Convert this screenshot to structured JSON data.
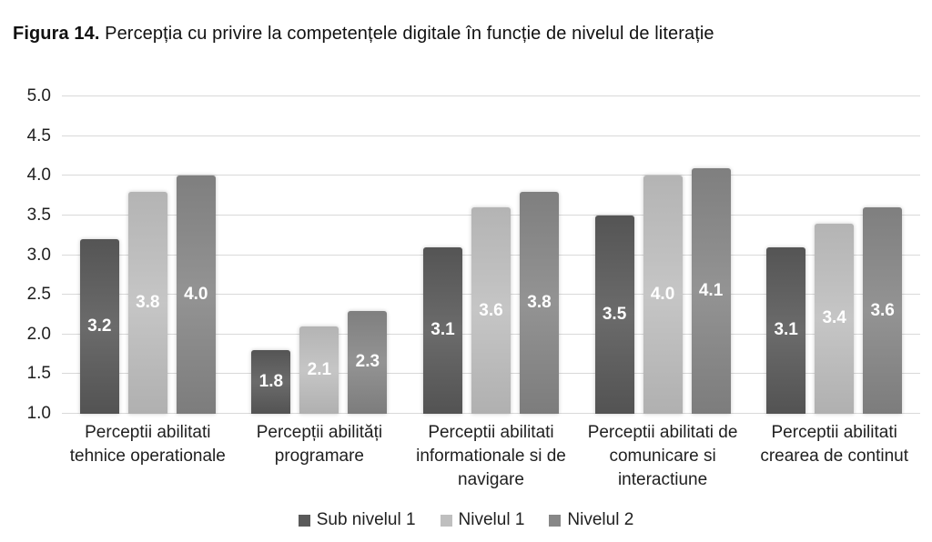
{
  "title": {
    "prefix": "Figura 14.",
    "text": " Percepția cu privire la competențele digitale în funcție de nivelul de literație"
  },
  "chart_data": {
    "type": "bar",
    "title": "Figura 14. Percepția cu privire la competențele digitale în funcție de nivelul de literație",
    "categories": [
      "Perceptii abilitati tehnice operationale",
      "Percepții abilități programare",
      "Perceptii abilitati informationale si de navigare",
      "Perceptii abilitati de comunicare si interactiune",
      "Perceptii abilitati crearea de continut"
    ],
    "categories_display": [
      "Perceptii abilitati\ntehnice operationale",
      "Percepții abilități\nprogramare",
      "Perceptii abilitati\ninformationale si de\nnavigare",
      "Perceptii abilitati de\ncomunicare si\ninteractiune",
      "Perceptii abilitati\ncrearea de continut"
    ],
    "series": [
      {
        "name": "Sub nivelul 1",
        "color": "#5a5a5a",
        "values": [
          3.2,
          1.8,
          3.1,
          3.5,
          3.1
        ]
      },
      {
        "name": "Nivelul 1",
        "color": "#bfbfbf",
        "values": [
          3.8,
          2.1,
          3.6,
          4.0,
          3.4
        ]
      },
      {
        "name": "Nivelul 2",
        "color": "#878787",
        "values": [
          4.0,
          2.3,
          3.8,
          4.1,
          3.6
        ]
      }
    ],
    "ylim": [
      1.0,
      5.0
    ],
    "yticks": [
      1.0,
      1.5,
      2.0,
      2.5,
      3.0,
      3.5,
      4.0,
      4.5,
      5.0
    ],
    "ytick_format_decimals": 1,
    "value_labels": true,
    "value_label_color": "#ffffff",
    "grid": true,
    "gridline_color": "#d9d9d9",
    "legend_position": "bottom",
    "background_color": "#ffffff"
  }
}
